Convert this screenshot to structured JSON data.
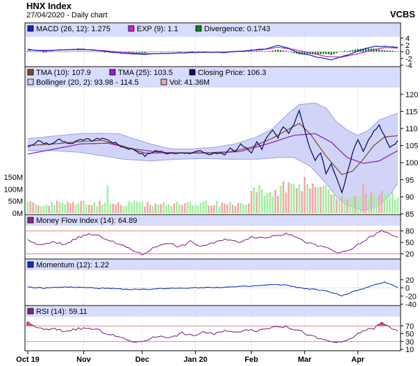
{
  "header": {
    "title": "HNX Index",
    "subtitle": "27/04/2020 - Daily chart",
    "brand": "VCBS"
  },
  "colors": {
    "panel_bg": "#ffffff",
    "legend_bg": "#d8dcff",
    "grid": "#c8c8c8",
    "macd": "#1020c0",
    "exp": "#d020d0",
    "divergence": "#108010",
    "tma10": "#7a4a2a",
    "tma25": "#9a20c8",
    "close": "#101060",
    "bollinger_fill": "#c8ccf4",
    "bollinger_line": "#9aa0e8",
    "vol_up": "#a0f0a0",
    "vol_down": "#f0a8a8",
    "mfi": "#8a2a8a",
    "level_line": "#e06060",
    "momentum": "#1030c0",
    "rsi": "#7a2a8a",
    "rsi_over": "#e04070",
    "rsi_under": "#6040e0"
  },
  "chart_data": {
    "type": "line",
    "x_ticks": [
      "Oct 19",
      "Nov",
      "Dec",
      "Jan 20",
      "Feb",
      "Mar",
      "Apr"
    ],
    "n_bars": 140,
    "panels": {
      "macd": {
        "legend": [
          {
            "label": "MACD (26, 12): 1.275",
            "color": "#1020c0"
          },
          {
            "label": "EXP (9): 1.1",
            "color": "#d020d0"
          },
          {
            "label": "Divergence: 0.1743",
            "color": "#108010"
          }
        ],
        "ylim": [
          -4,
          4
        ],
        "ticks": [
          "4",
          "2",
          "0",
          "-2",
          "-4"
        ],
        "macd_anchors": [
          [
            0,
            0.7
          ],
          [
            6,
            0.2
          ],
          [
            12,
            0.5
          ],
          [
            20,
            0.8
          ],
          [
            28,
            0.2
          ],
          [
            36,
            -0.5
          ],
          [
            44,
            -0.8
          ],
          [
            50,
            -0.5
          ],
          [
            58,
            -0.3
          ],
          [
            66,
            -0.1
          ],
          [
            74,
            -0.2
          ],
          [
            82,
            0.3
          ],
          [
            90,
            0.9
          ],
          [
            94,
            1.9
          ],
          [
            98,
            1.0
          ],
          [
            102,
            -0.4
          ],
          [
            106,
            -1.0
          ],
          [
            110,
            -1.8
          ],
          [
            114,
            -2.4
          ],
          [
            118,
            -1.4
          ],
          [
            122,
            -0.5
          ],
          [
            126,
            0.8
          ],
          [
            130,
            1.6
          ],
          [
            134,
            1.6
          ],
          [
            139,
            1.275
          ]
        ],
        "exp_anchors": [
          [
            0,
            0.5
          ],
          [
            8,
            0.4
          ],
          [
            16,
            0.6
          ],
          [
            24,
            0.6
          ],
          [
            32,
            0.1
          ],
          [
            40,
            -0.4
          ],
          [
            48,
            -0.6
          ],
          [
            56,
            -0.4
          ],
          [
            64,
            -0.2
          ],
          [
            72,
            -0.1
          ],
          [
            80,
            0.1
          ],
          [
            88,
            0.6
          ],
          [
            94,
            1.3
          ],
          [
            100,
            0.7
          ],
          [
            106,
            -0.3
          ],
          [
            112,
            -1.4
          ],
          [
            118,
            -1.6
          ],
          [
            124,
            -0.6
          ],
          [
            130,
            0.6
          ],
          [
            134,
            1.2
          ],
          [
            139,
            1.1
          ]
        ]
      },
      "price": {
        "legend": [
          {
            "label": "TMA (10): 107.9",
            "color": "#7a4a2a"
          },
          {
            "label": "TMA (25): 103.5",
            "color": "#9a20c8"
          },
          {
            "label": "Closing Price: 106.3",
            "color": "#101060"
          },
          {
            "label": "Bollinger (20, 2): 93.98 - 114.5",
            "color": "#c8ccf4"
          },
          {
            "label": "Vol: 41.36M",
            "color": "#f0a8a8"
          }
        ],
        "ylim": [
          85,
          122
        ],
        "ticks": [
          "120",
          "115",
          "110",
          "105",
          "100",
          "95",
          "90",
          "85"
        ],
        "close_anchors": [
          [
            0,
            104.5
          ],
          [
            4,
            106.5
          ],
          [
            8,
            105.2
          ],
          [
            12,
            106.8
          ],
          [
            16,
            105.5
          ],
          [
            20,
            107.0
          ],
          [
            24,
            106.5
          ],
          [
            28,
            107.2
          ],
          [
            32,
            106.0
          ],
          [
            36,
            104.5
          ],
          [
            40,
            103.8
          ],
          [
            44,
            102.0
          ],
          [
            48,
            103.5
          ],
          [
            52,
            102.8
          ],
          [
            56,
            103.0
          ],
          [
            60,
            102.5
          ],
          [
            64,
            103.5
          ],
          [
            68,
            102.5
          ],
          [
            72,
            103.0
          ],
          [
            74,
            102.0
          ],
          [
            76,
            104.0
          ],
          [
            78,
            103.0
          ],
          [
            80,
            105.5
          ],
          [
            82,
            104.5
          ],
          [
            84,
            103.0
          ],
          [
            86,
            106.0
          ],
          [
            88,
            104.0
          ],
          [
            90,
            108.0
          ],
          [
            92,
            109.5
          ],
          [
            94,
            107.5
          ],
          [
            96,
            110.5
          ],
          [
            98,
            108.5
          ],
          [
            100,
            111.5
          ],
          [
            102,
            115.0
          ],
          [
            104,
            110.0
          ],
          [
            106,
            104.0
          ],
          [
            108,
            100.5
          ],
          [
            110,
            103.0
          ],
          [
            112,
            97.0
          ],
          [
            114,
            100.0
          ],
          [
            116,
            95.5
          ],
          [
            118,
            91.0
          ],
          [
            120,
            97.0
          ],
          [
            122,
            103.0
          ],
          [
            124,
            107.0
          ],
          [
            126,
            103.5
          ],
          [
            128,
            106.5
          ],
          [
            130,
            109.5
          ],
          [
            132,
            111.0
          ],
          [
            134,
            108.0
          ],
          [
            136,
            104.5
          ],
          [
            139,
            106.3
          ]
        ],
        "tma10_anchors": [
          [
            0,
            105
          ],
          [
            10,
            105.5
          ],
          [
            20,
            106.2
          ],
          [
            28,
            106.5
          ],
          [
            36,
            104.8
          ],
          [
            44,
            102.8
          ],
          [
            56,
            102.9
          ],
          [
            68,
            102.9
          ],
          [
            76,
            103.2
          ],
          [
            84,
            104.5
          ],
          [
            92,
            107.2
          ],
          [
            98,
            109.8
          ],
          [
            102,
            111.5
          ],
          [
            106,
            108.5
          ],
          [
            112,
            102.0
          ],
          [
            118,
            96.5
          ],
          [
            122,
            97.5
          ],
          [
            126,
            101.0
          ],
          [
            130,
            105.0
          ],
          [
            134,
            107.5
          ],
          [
            139,
            107.9
          ]
        ],
        "tma25_anchors": [
          [
            0,
            102.5
          ],
          [
            10,
            104.0
          ],
          [
            20,
            105.5
          ],
          [
            30,
            105.7
          ],
          [
            40,
            104.0
          ],
          [
            50,
            103.0
          ],
          [
            60,
            102.8
          ],
          [
            70,
            102.8
          ],
          [
            80,
            103.3
          ],
          [
            90,
            105.5
          ],
          [
            100,
            108.0
          ],
          [
            108,
            108.5
          ],
          [
            114,
            106.0
          ],
          [
            120,
            101.5
          ],
          [
            126,
            99.8
          ],
          [
            132,
            100.5
          ],
          [
            139,
            103.5
          ]
        ],
        "boll_upper_anchors": [
          [
            0,
            107.0
          ],
          [
            10,
            107.8
          ],
          [
            20,
            108.5
          ],
          [
            26,
            108.6
          ],
          [
            34,
            108.5
          ],
          [
            40,
            107.0
          ],
          [
            46,
            105.5
          ],
          [
            54,
            104.0
          ],
          [
            62,
            104.0
          ],
          [
            70,
            104.5
          ],
          [
            78,
            105.5
          ],
          [
            86,
            107.5
          ],
          [
            92,
            110.0
          ],
          [
            98,
            114.5
          ],
          [
            102,
            117.0
          ],
          [
            108,
            117.5
          ],
          [
            112,
            116.0
          ],
          [
            116,
            112.0
          ],
          [
            120,
            109.5
          ],
          [
            124,
            108.0
          ],
          [
            128,
            109.5
          ],
          [
            132,
            112.5
          ],
          [
            139,
            114.5
          ]
        ],
        "boll_lower_anchors": [
          [
            0,
            103.5
          ],
          [
            10,
            103.5
          ],
          [
            20,
            103.0
          ],
          [
            28,
            102.0
          ],
          [
            36,
            101.0
          ],
          [
            46,
            100.5
          ],
          [
            56,
            101.0
          ],
          [
            66,
            101.2
          ],
          [
            76,
            101.0
          ],
          [
            86,
            101.0
          ],
          [
            94,
            101.5
          ],
          [
            100,
            101.5
          ],
          [
            106,
            99.0
          ],
          [
            112,
            94.0
          ],
          [
            116,
            90.0
          ],
          [
            120,
            87.5
          ],
          [
            126,
            86.0
          ],
          [
            132,
            87.5
          ],
          [
            136,
            90.5
          ],
          [
            139,
            93.98
          ]
        ],
        "volume_max_M": 150,
        "volume_ticks": [
          "150M",
          "100M",
          "50M",
          "0M"
        ]
      },
      "mfi": {
        "legend": [
          {
            "label": "Money Flow Index (14): 64.89",
            "color": "#8a2a8a"
          }
        ],
        "ylim": [
          10,
          90
        ],
        "ticks": [
          "80",
          "50",
          "20"
        ],
        "levels": [
          80,
          20
        ],
        "anchors": [
          [
            0,
            55
          ],
          [
            5,
            42
          ],
          [
            9,
            50
          ],
          [
            14,
            45
          ],
          [
            18,
            60
          ],
          [
            23,
            72
          ],
          [
            28,
            64
          ],
          [
            33,
            48
          ],
          [
            38,
            35
          ],
          [
            43,
            18
          ],
          [
            47,
            35
          ],
          [
            52,
            50
          ],
          [
            57,
            38
          ],
          [
            61,
            52
          ],
          [
            65,
            40
          ],
          [
            70,
            48
          ],
          [
            74,
            60
          ],
          [
            79,
            50
          ],
          [
            84,
            65
          ],
          [
            89,
            62
          ],
          [
            94,
            70
          ],
          [
            99,
            72
          ],
          [
            103,
            55
          ],
          [
            108,
            42
          ],
          [
            113,
            35
          ],
          [
            117,
            20
          ],
          [
            121,
            30
          ],
          [
            125,
            48
          ],
          [
            129,
            65
          ],
          [
            133,
            80
          ],
          [
            136,
            72
          ],
          [
            139,
            64.89
          ]
        ]
      },
      "momentum": {
        "legend": [
          {
            "label": "Momentum (12): 1.22",
            "color": "#1030c0"
          }
        ],
        "ylim": [
          -40,
          40
        ],
        "ticks": [
          "20",
          "0",
          "-20",
          "-40"
        ],
        "anchors": [
          [
            0,
            2
          ],
          [
            6,
            -1
          ],
          [
            12,
            2
          ],
          [
            20,
            1
          ],
          [
            28,
            -1
          ],
          [
            36,
            -3
          ],
          [
            44,
            -4
          ],
          [
            52,
            -1
          ],
          [
            60,
            0
          ],
          [
            68,
            1
          ],
          [
            76,
            2
          ],
          [
            84,
            4
          ],
          [
            92,
            8
          ],
          [
            98,
            6
          ],
          [
            102,
            0
          ],
          [
            108,
            -4
          ],
          [
            112,
            -8
          ],
          [
            116,
            -14
          ],
          [
            118,
            -20
          ],
          [
            122,
            -10
          ],
          [
            126,
            -2
          ],
          [
            130,
            6
          ],
          [
            134,
            14
          ],
          [
            136,
            10
          ],
          [
            139,
            1.22
          ]
        ]
      },
      "rsi": {
        "legend": [
          {
            "label": "RSI (14): 59.11",
            "color": "#7a2a8a"
          }
        ],
        "ylim": [
          10,
          90
        ],
        "ticks": [
          "70",
          "50",
          "30",
          "10"
        ],
        "levels": [
          70,
          30
        ],
        "anchors": [
          [
            0,
            78
          ],
          [
            3,
            68
          ],
          [
            6,
            60
          ],
          [
            10,
            62
          ],
          [
            14,
            56
          ],
          [
            18,
            62
          ],
          [
            22,
            64
          ],
          [
            26,
            60
          ],
          [
            30,
            50
          ],
          [
            34,
            42
          ],
          [
            38,
            32
          ],
          [
            42,
            28
          ],
          [
            46,
            38
          ],
          [
            50,
            45
          ],
          [
            54,
            40
          ],
          [
            58,
            52
          ],
          [
            62,
            44
          ],
          [
            66,
            55
          ],
          [
            70,
            48
          ],
          [
            74,
            60
          ],
          [
            78,
            52
          ],
          [
            82,
            62
          ],
          [
            86,
            58
          ],
          [
            90,
            64
          ],
          [
            94,
            70
          ],
          [
            98,
            66
          ],
          [
            102,
            58
          ],
          [
            106,
            45
          ],
          [
            110,
            36
          ],
          [
            114,
            30
          ],
          [
            118,
            26
          ],
          [
            122,
            40
          ],
          [
            126,
            58
          ],
          [
            130,
            64
          ],
          [
            133,
            78
          ],
          [
            136,
            66
          ],
          [
            139,
            59.11
          ]
        ]
      }
    }
  }
}
